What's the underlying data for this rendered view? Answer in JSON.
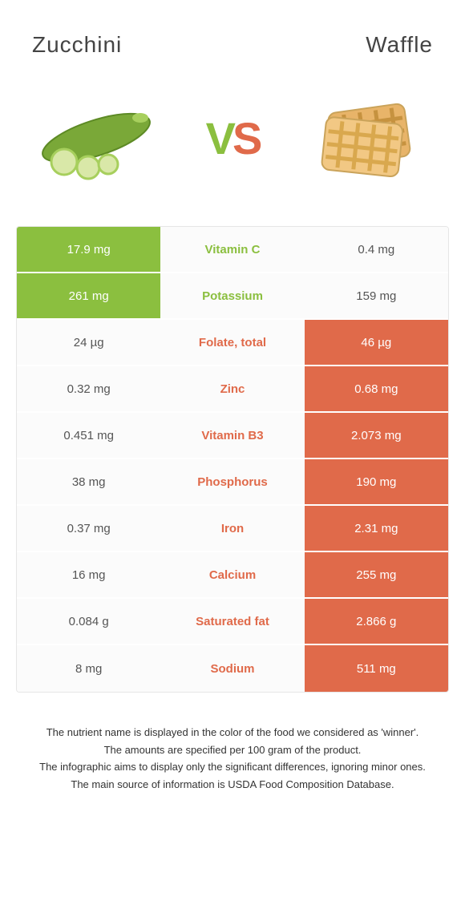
{
  "left": {
    "name": "Zucchini",
    "color": "#8bbf3f"
  },
  "right": {
    "name": "Waffle",
    "color": "#e06a4a"
  },
  "neutral_bg": "#fbfbfb",
  "rows": [
    {
      "left": "17.9 mg",
      "label": "Vitamin C",
      "right": "0.4 mg",
      "winner": "left"
    },
    {
      "left": "261 mg",
      "label": "Potassium",
      "right": "159 mg",
      "winner": "left"
    },
    {
      "left": "24 µg",
      "label": "Folate, total",
      "right": "46 µg",
      "winner": "right"
    },
    {
      "left": "0.32 mg",
      "label": "Zinc",
      "right": "0.68 mg",
      "winner": "right"
    },
    {
      "left": "0.451 mg",
      "label": "Vitamin B3",
      "right": "2.073 mg",
      "winner": "right"
    },
    {
      "left": "38 mg",
      "label": "Phosphorus",
      "right": "190 mg",
      "winner": "right"
    },
    {
      "left": "0.37 mg",
      "label": "Iron",
      "right": "2.31 mg",
      "winner": "right"
    },
    {
      "left": "16 mg",
      "label": "Calcium",
      "right": "255 mg",
      "winner": "right"
    },
    {
      "left": "0.084 g",
      "label": "Saturated fat",
      "right": "2.866 g",
      "winner": "right"
    },
    {
      "left": "8 mg",
      "label": "Sodium",
      "right": "511 mg",
      "winner": "right"
    }
  ],
  "footer": [
    "The nutrient name is displayed in the color of the food we considered as 'winner'.",
    "The amounts are specified per 100 gram of the product.",
    "The infographic aims to display only the significant differences, ignoring minor ones.",
    "The main source of information is USDA Food Composition Database."
  ]
}
